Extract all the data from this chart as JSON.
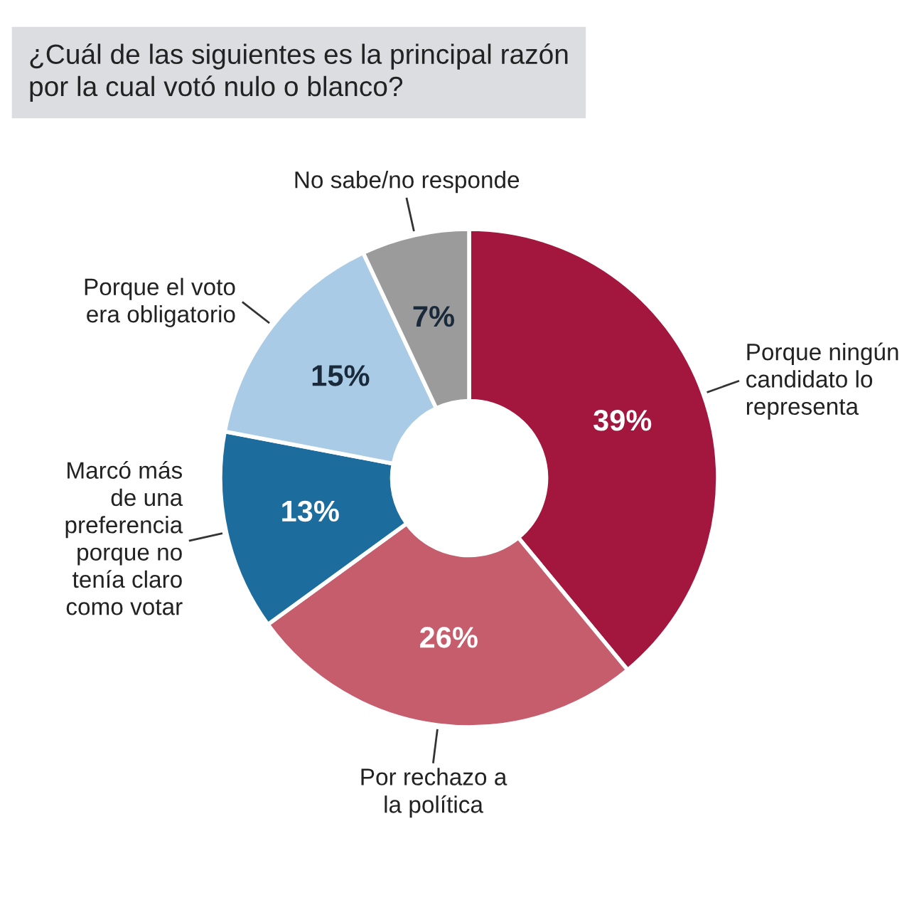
{
  "chart_data": {
    "type": "donut",
    "title": "¿Cuál de las siguientes es la principal razón\npor la cual votó nulo o blanco?",
    "categories": [
      "Porque ningún\ncandidato lo\nrepresenta",
      "Por rechazo a\nla política",
      "Marcó más\nde una\npreferencia\nporque no\ntenía claro\ncomo votar",
      "Porque el voto\nera obligatorio",
      "No sabe/no responde"
    ],
    "values": [
      39,
      26,
      13,
      15,
      7
    ],
    "colors": [
      "#a3173f",
      "#c55d6d",
      "#1c6d9d",
      "#a9cbe6",
      "#9b9b9b"
    ],
    "value_labels": [
      "39%",
      "26%",
      "13%",
      "15%",
      "7%"
    ],
    "legend": false
  }
}
